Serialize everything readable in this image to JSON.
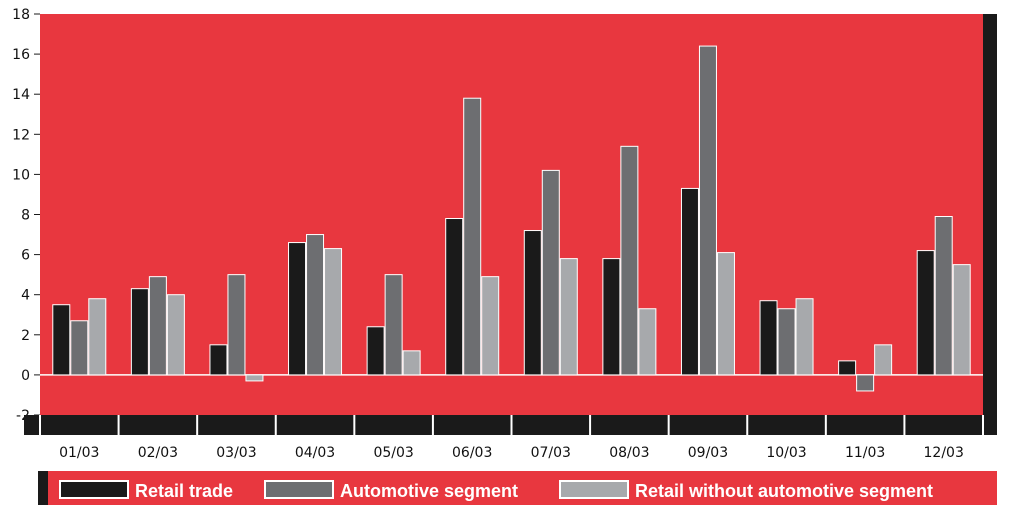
{
  "chart_data": {
    "type": "bar",
    "title": "",
    "xlabel": "",
    "ylabel": "",
    "ylim": [
      -2,
      18
    ],
    "yticks": [
      -2,
      0,
      2,
      4,
      6,
      8,
      10,
      12,
      14,
      16,
      18
    ],
    "categories": [
      "01/03",
      "02/03",
      "03/03",
      "04/03",
      "05/03",
      "06/03",
      "07/03",
      "08/03",
      "09/03",
      "10/03",
      "11/03",
      "12/03"
    ],
    "series": [
      {
        "name": "Retail trade",
        "color": "#1a1a1a",
        "values": [
          3.5,
          4.3,
          1.5,
          6.6,
          2.4,
          7.8,
          7.2,
          5.8,
          9.3,
          3.7,
          0.7,
          6.2
        ]
      },
      {
        "name": "Automotive segment",
        "color": "#6d6e71",
        "values": [
          2.7,
          4.9,
          5.0,
          7.0,
          5.0,
          13.8,
          10.2,
          11.4,
          16.4,
          3.3,
          -0.8,
          7.9
        ]
      },
      {
        "name": "Retail without automotive segment",
        "color": "#a7a9ac",
        "values": [
          3.8,
          4.0,
          -0.3,
          6.3,
          1.2,
          4.9,
          5.8,
          3.3,
          6.1,
          3.8,
          1.5,
          5.5
        ]
      }
    ],
    "grid": false,
    "legend_position": "bottom",
    "plot_background": "#e8373f"
  }
}
